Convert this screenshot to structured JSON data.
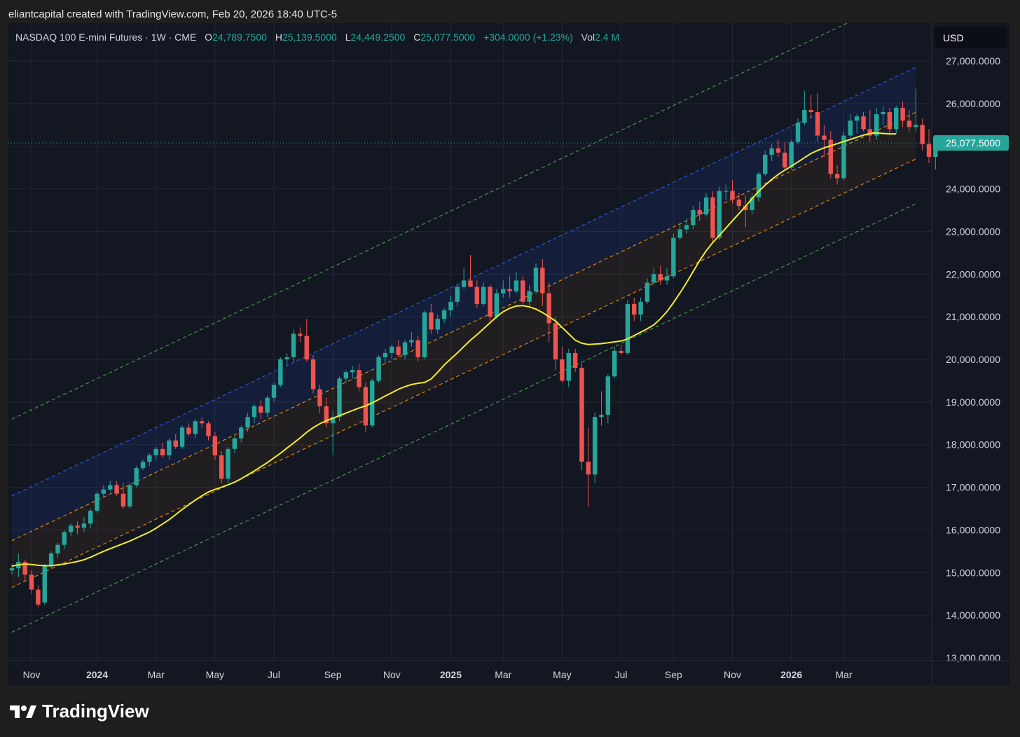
{
  "credit": "eliantcapital created with TradingView.com, Feb 20, 2026 18:40 UTC-5",
  "legend": {
    "symbol": "NASDAQ 100 E-mini Futures · 1W · CME",
    "open_label": "O",
    "open": "24,789.7500",
    "high_label": "H",
    "high": "25,139.5000",
    "low_label": "L",
    "low": "24,449.2500",
    "close_label": "C",
    "close": "25,077.5000",
    "change": "+304.0000 (+1.23%)",
    "vol_label": "Vol",
    "vol": "2.4 M"
  },
  "currency": "USD",
  "brand": "TradingView",
  "colors": {
    "up": "#26a69a",
    "down": "#ef5350",
    "ma": "#f5ec2a",
    "last_price_badge": "#26a69a"
  },
  "chart_data": {
    "type": "candlestick",
    "timeframe": "1W",
    "ylim": [
      13000,
      27000
    ],
    "last_price": 25077.5,
    "last_price_label": "25,077.5000",
    "y_ticks": [
      13000,
      14000,
      15000,
      16000,
      17000,
      18000,
      19000,
      20000,
      21000,
      22000,
      23000,
      24000,
      25000,
      26000,
      27000
    ],
    "y_tick_labels": [
      "13,000.0000",
      "14,000.0000",
      "15,000.0000",
      "16,000.0000",
      "17,000.0000",
      "18,000.0000",
      "19,000.0000",
      "20,000.0000",
      "21,000.0000",
      "22,000.0000",
      "23,000.0000",
      "24,000.0000",
      "25,000.0000",
      "26,000.0000",
      "27,000.0000"
    ],
    "x_ticks": [
      {
        "label": "Nov",
        "week": 3,
        "bold": false
      },
      {
        "label": "2024",
        "week": 13,
        "bold": true
      },
      {
        "label": "Mar",
        "week": 22,
        "bold": false
      },
      {
        "label": "May",
        "week": 31,
        "bold": false
      },
      {
        "label": "Jul",
        "week": 40,
        "bold": false
      },
      {
        "label": "Sep",
        "week": 49,
        "bold": false
      },
      {
        "label": "Nov",
        "week": 58,
        "bold": false
      },
      {
        "label": "2025",
        "week": 67,
        "bold": true
      },
      {
        "label": "Mar",
        "week": 75,
        "bold": false
      },
      {
        "label": "May",
        "week": 84,
        "bold": false
      },
      {
        "label": "Jul",
        "week": 93,
        "bold": false
      },
      {
        "label": "Sep",
        "week": 101,
        "bold": false
      },
      {
        "label": "Nov",
        "week": 110,
        "bold": false
      },
      {
        "label": "2026",
        "week": 119,
        "bold": true
      },
      {
        "label": "Mar",
        "week": 127,
        "bold": false
      }
    ],
    "candles": [
      [
        15050,
        15200,
        14950,
        15100
      ],
      [
        15100,
        15450,
        14900,
        15250
      ],
      [
        15250,
        15300,
        14800,
        14950
      ],
      [
        14950,
        15050,
        14500,
        14600
      ],
      [
        14600,
        14700,
        14200,
        14250
      ],
      [
        14300,
        15200,
        14250,
        15150
      ],
      [
        15150,
        15500,
        15100,
        15450
      ],
      [
        15450,
        15700,
        15350,
        15650
      ],
      [
        15650,
        16000,
        15550,
        15950
      ],
      [
        15950,
        16150,
        15850,
        16100
      ],
      [
        16100,
        16200,
        15900,
        16050
      ],
      [
        16050,
        16300,
        15950,
        16150
      ],
      [
        16150,
        16500,
        16050,
        16450
      ],
      [
        16450,
        16900,
        16400,
        16850
      ],
      [
        16850,
        17050,
        16750,
        16950
      ],
      [
        16950,
        17150,
        16900,
        17050
      ],
      [
        17050,
        17150,
        16800,
        16850
      ],
      [
        16850,
        17100,
        16500,
        16550
      ],
      [
        16550,
        17100,
        16500,
        17050
      ],
      [
        17050,
        17500,
        17000,
        17450
      ],
      [
        17450,
        17650,
        17400,
        17600
      ],
      [
        17600,
        17800,
        17500,
        17750
      ],
      [
        17750,
        17950,
        17650,
        17900
      ],
      [
        17900,
        18050,
        17700,
        17750
      ],
      [
        17750,
        18150,
        17650,
        18100
      ],
      [
        18100,
        18250,
        17900,
        17950
      ],
      [
        17950,
        18450,
        17900,
        18400
      ],
      [
        18400,
        18500,
        18200,
        18250
      ],
      [
        18250,
        18600,
        18150,
        18550
      ],
      [
        18550,
        18650,
        18400,
        18500
      ],
      [
        18500,
        18550,
        18100,
        18200
      ],
      [
        18200,
        18300,
        17650,
        17750
      ],
      [
        17750,
        17850,
        17100,
        17200
      ],
      [
        17200,
        17950,
        17100,
        17900
      ],
      [
        17900,
        18200,
        17800,
        18150
      ],
      [
        18150,
        18450,
        18050,
        18400
      ],
      [
        18400,
        18750,
        18300,
        18650
      ],
      [
        18650,
        18950,
        18500,
        18900
      ],
      [
        18900,
        19050,
        18600,
        18750
      ],
      [
        18750,
        19150,
        18650,
        19100
      ],
      [
        19100,
        19450,
        19000,
        19400
      ],
      [
        19400,
        20050,
        19350,
        20000
      ],
      [
        20000,
        20150,
        19850,
        20050
      ],
      [
        20050,
        20700,
        19950,
        20600
      ],
      [
        20600,
        20750,
        20400,
        20550
      ],
      [
        20550,
        20950,
        19950,
        20000
      ],
      [
        20000,
        20100,
        19200,
        19300
      ],
      [
        19300,
        19400,
        18750,
        18900
      ],
      [
        18900,
        19100,
        18400,
        18500
      ],
      [
        18500,
        18800,
        17750,
        18650
      ],
      [
        18650,
        19600,
        18550,
        19550
      ],
      [
        19550,
        19750,
        19450,
        19700
      ],
      [
        19700,
        19850,
        19550,
        19750
      ],
      [
        19750,
        19900,
        19250,
        19350
      ],
      [
        19350,
        19450,
        18300,
        18450
      ],
      [
        18450,
        19550,
        18400,
        19500
      ],
      [
        19500,
        20100,
        19450,
        20050
      ],
      [
        20050,
        20250,
        19900,
        20150
      ],
      [
        20150,
        20350,
        20000,
        20300
      ],
      [
        20300,
        20450,
        20050,
        20100
      ],
      [
        20100,
        20450,
        20000,
        20400
      ],
      [
        20400,
        20650,
        20300,
        20450
      ],
      [
        20450,
        20550,
        19950,
        20050
      ],
      [
        20050,
        21150,
        20000,
        21100
      ],
      [
        21100,
        21300,
        20600,
        20700
      ],
      [
        20700,
        21050,
        20600,
        20950
      ],
      [
        20950,
        21200,
        20850,
        21150
      ],
      [
        21150,
        21500,
        21000,
        21350
      ],
      [
        21350,
        21750,
        21250,
        21700
      ],
      [
        21700,
        22150,
        21650,
        21850
      ],
      [
        21850,
        22450,
        21750,
        21700
      ],
      [
        21700,
        21850,
        21200,
        21300
      ],
      [
        21300,
        21800,
        21250,
        21700
      ],
      [
        21700,
        21750,
        20900,
        21000
      ],
      [
        21000,
        21650,
        20950,
        21550
      ],
      [
        21550,
        21850,
        21450,
        21650
      ],
      [
        21650,
        21950,
        21450,
        21600
      ],
      [
        21600,
        22050,
        21550,
        21850
      ],
      [
        21850,
        21950,
        21300,
        21350
      ],
      [
        21350,
        21750,
        21250,
        21600
      ],
      [
        21600,
        22250,
        21550,
        22150
      ],
      [
        22150,
        22350,
        21250,
        21550
      ],
      [
        21550,
        21800,
        20400,
        20850
      ],
      [
        20850,
        21000,
        19750,
        20000
      ],
      [
        20000,
        20300,
        19450,
        19500
      ],
      [
        19500,
        20250,
        19350,
        20150
      ],
      [
        20150,
        20250,
        19700,
        19800
      ],
      [
        19800,
        19950,
        17400,
        17600
      ],
      [
        17600,
        18400,
        16550,
        17300
      ],
      [
        17300,
        18750,
        17100,
        18650
      ],
      [
        18650,
        19250,
        18450,
        18700
      ],
      [
        18700,
        19650,
        18500,
        19600
      ],
      [
        19600,
        20300,
        19550,
        20200
      ],
      [
        20200,
        20350,
        20100,
        20150
      ],
      [
        20150,
        21400,
        20100,
        21300
      ],
      [
        21300,
        21450,
        20900,
        21050
      ],
      [
        21050,
        21450,
        20900,
        21350
      ],
      [
        21350,
        21900,
        21300,
        21800
      ],
      [
        21800,
        22150,
        21750,
        22000
      ],
      [
        22000,
        22200,
        21750,
        21850
      ],
      [
        21850,
        22150,
        21750,
        21950
      ],
      [
        21950,
        22950,
        21900,
        22850
      ],
      [
        22850,
        23200,
        22800,
        23050
      ],
      [
        23050,
        23300,
        22950,
        23150
      ],
      [
        23150,
        23600,
        23050,
        23500
      ],
      [
        23500,
        23700,
        23250,
        23400
      ],
      [
        23400,
        23900,
        23350,
        23800
      ],
      [
        23800,
        23950,
        22750,
        22850
      ],
      [
        22850,
        24050,
        22800,
        23950
      ],
      [
        23950,
        24100,
        23750,
        23950
      ],
      [
        23950,
        24200,
        23650,
        23750
      ],
      [
        23750,
        23900,
        23500,
        23600
      ],
      [
        23600,
        23850,
        23100,
        23500
      ],
      [
        23500,
        23900,
        23400,
        23800
      ],
      [
        23800,
        24400,
        23700,
        24350
      ],
      [
        24350,
        24900,
        24300,
        24800
      ],
      [
        24800,
        25050,
        24650,
        24950
      ],
      [
        24950,
        25150,
        24750,
        24850
      ],
      [
        24850,
        25100,
        24450,
        24500
      ],
      [
        24500,
        25150,
        24450,
        25100
      ],
      [
        25100,
        25650,
        25050,
        25550
      ],
      [
        25550,
        26300,
        25500,
        25850
      ],
      [
        25850,
        26200,
        25650,
        25800
      ],
      [
        25800,
        26250,
        25100,
        25250
      ],
      [
        25250,
        25500,
        24750,
        25150
      ],
      [
        25150,
        25350,
        24250,
        24350
      ],
      [
        24350,
        24550,
        24100,
        24250
      ],
      [
        24250,
        25350,
        24200,
        25250
      ],
      [
        25250,
        25750,
        25200,
        25600
      ],
      [
        25600,
        25750,
        25300,
        25700
      ],
      [
        25700,
        25800,
        25350,
        25400
      ],
      [
        25400,
        25850,
        25100,
        25250
      ],
      [
        25250,
        25900,
        25150,
        25750
      ],
      [
        25750,
        25950,
        25500,
        25800
      ],
      [
        25800,
        25900,
        25300,
        25400
      ],
      [
        25400,
        25950,
        25300,
        25900
      ],
      [
        25900,
        26050,
        25450,
        25600
      ],
      [
        25600,
        25850,
        25350,
        25450
      ],
      [
        25450,
        26350,
        25350,
        25500
      ],
      [
        25500,
        25650,
        24900,
        25050
      ],
      [
        25050,
        25400,
        24600,
        24750
      ],
      [
        24750,
        25150,
        24450,
        25050
      ]
    ],
    "moving_average": [
      15150,
      15180,
      15200,
      15190,
      15170,
      15160,
      15160,
      15180,
      15200,
      15230,
      15260,
      15300,
      15360,
      15430,
      15500,
      15560,
      15620,
      15680,
      15740,
      15810,
      15880,
      15950,
      16040,
      16140,
      16240,
      16360,
      16480,
      16590,
      16700,
      16800,
      16890,
      16950,
      17000,
      17060,
      17120,
      17200,
      17290,
      17380,
      17480,
      17580,
      17690,
      17800,
      17920,
      18040,
      18160,
      18290,
      18400,
      18490,
      18560,
      18620,
      18680,
      18740,
      18800,
      18860,
      18910,
      18980,
      19060,
      19140,
      19220,
      19300,
      19360,
      19410,
      19440,
      19460,
      19540,
      19700,
      19870,
      20010,
      20150,
      20300,
      20450,
      20580,
      20720,
      20860,
      21000,
      21120,
      21200,
      21250,
      21260,
      21230,
      21180,
      21100,
      21000,
      20900,
      20750,
      20600,
      20450,
      20380,
      20350,
      20360,
      20370,
      20390,
      20410,
      20430,
      20480,
      20560,
      20640,
      20720,
      20810,
      20950,
      21120,
      21330,
      21560,
      21800,
      22060,
      22320,
      22550,
      22740,
      22910,
      23080,
      23250,
      23420,
      23590,
      23770,
      23940,
      24090,
      24220,
      24340,
      24440,
      24530,
      24630,
      24730,
      24830,
      24900,
      24960,
      25010,
      25060,
      25110,
      25160,
      25210,
      25260,
      25300,
      25310,
      25300,
      25290,
      25290
    ],
    "channel": {
      "start_week": 0,
      "end_week": 138,
      "mid_start": 15750,
      "mid_end": 25800,
      "upper_offset": 1050,
      "lower_offset": -1100,
      "outer_upper_offset": 2850,
      "outer_lower_offset": -2150
    }
  }
}
